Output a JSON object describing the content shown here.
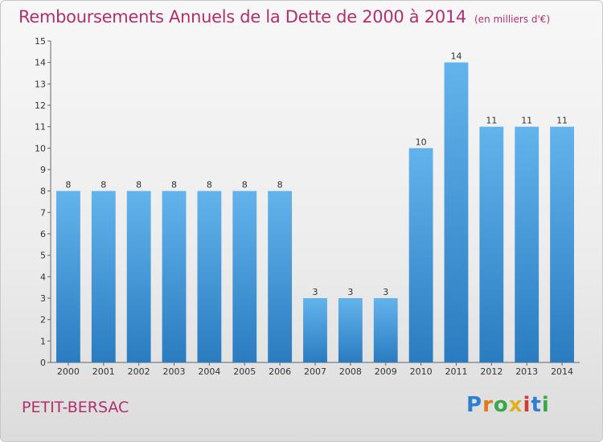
{
  "header": {
    "title": "Remboursements Annuels de la Dette de 2000 à 2014",
    "unit": "(en milliers d'€)"
  },
  "footer": {
    "place": "PETIT-BERSAC",
    "brand_letters": [
      "P",
      "r",
      "o",
      "x",
      "i",
      "t",
      "i"
    ]
  },
  "colors": {
    "title": "#b0306e",
    "bar_top": "#63b3ec",
    "bar_bottom": "#2a7cc0"
  },
  "chart_data": {
    "type": "bar",
    "title": "Remboursements Annuels de la Dette de 2000 à 2014",
    "xlabel": "",
    "ylabel": "",
    "categories": [
      "2000",
      "2001",
      "2002",
      "2003",
      "2004",
      "2005",
      "2006",
      "2007",
      "2008",
      "2009",
      "2010",
      "2011",
      "2012",
      "2013",
      "2014"
    ],
    "values": [
      8,
      8,
      8,
      8,
      8,
      8,
      8,
      3,
      3,
      3,
      10,
      14,
      11,
      11,
      11
    ],
    "ylim": [
      0,
      15
    ],
    "yticks": [
      0,
      1,
      2,
      3,
      4,
      5,
      6,
      7,
      8,
      9,
      10,
      11,
      12,
      13,
      14,
      15
    ],
    "grid": false,
    "legend": "none"
  }
}
